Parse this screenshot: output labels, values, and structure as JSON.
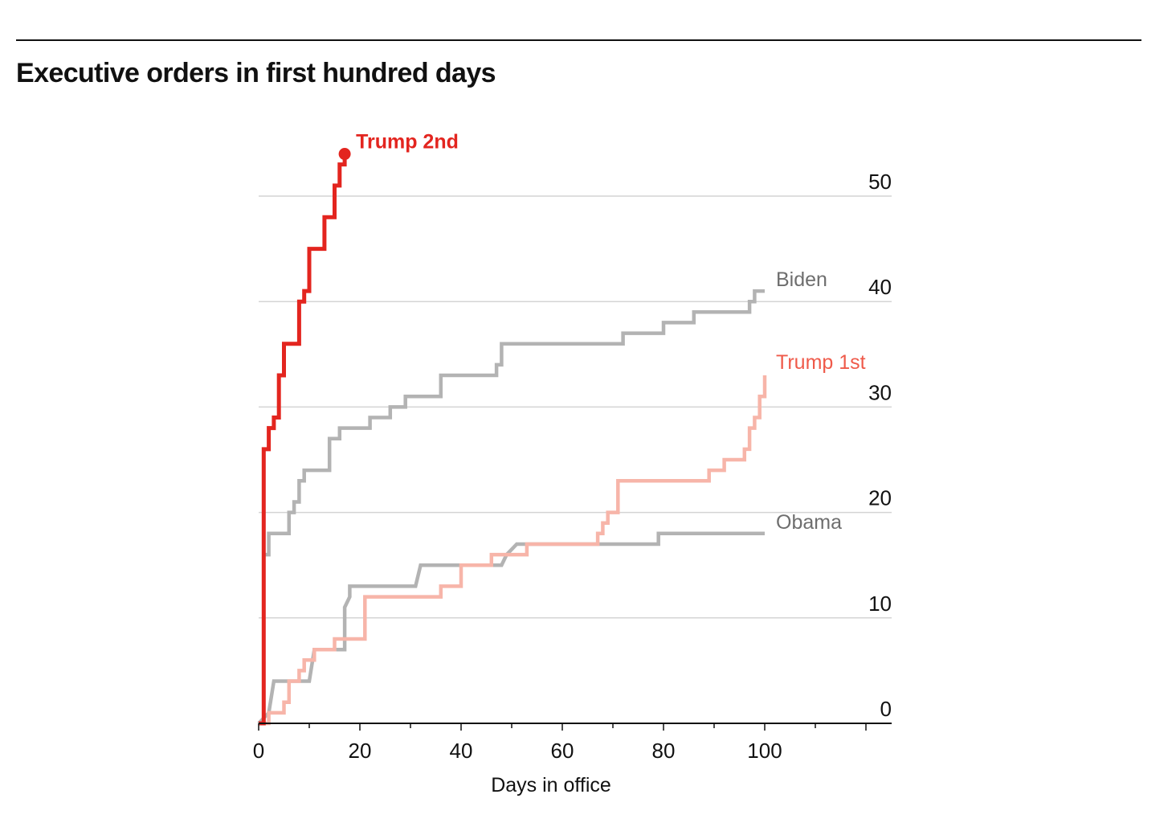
{
  "header": {
    "title": "Executive orders in first hundred days"
  },
  "chart_data": {
    "type": "line",
    "step": true,
    "title": "Executive orders in first hundred days",
    "xlabel": "Days in office",
    "ylabel": "",
    "xlim": [
      0,
      125
    ],
    "ylim": [
      0,
      55
    ],
    "x_ticks": [
      0,
      20,
      40,
      60,
      80,
      100
    ],
    "y_ticks": [
      0,
      10,
      20,
      30,
      40,
      50
    ],
    "grid": true,
    "legend": "direct labels at line ends",
    "series": [
      {
        "name": "Obama",
        "color": "#b3b3b3",
        "label_color": "#6e6e6e",
        "points": [
          [
            0,
            0
          ],
          [
            2,
            1
          ],
          [
            3,
            4
          ],
          [
            10,
            4
          ],
          [
            11,
            7
          ],
          [
            17,
            7
          ],
          [
            17,
            11
          ],
          [
            18,
            12
          ],
          [
            18,
            13
          ],
          [
            31,
            13
          ],
          [
            32,
            15
          ],
          [
            48,
            15
          ],
          [
            49,
            16
          ],
          [
            51,
            17
          ],
          [
            79,
            17
          ],
          [
            79,
            18
          ],
          [
            100,
            18
          ]
        ]
      },
      {
        "name": "Biden",
        "color": "#b3b3b3",
        "label_color": "#6e6e6e",
        "points": [
          [
            1,
            9
          ],
          [
            1,
            16
          ],
          [
            2,
            16
          ],
          [
            2,
            18
          ],
          [
            6,
            18
          ],
          [
            6,
            20
          ],
          [
            7,
            20
          ],
          [
            7,
            21
          ],
          [
            8,
            21
          ],
          [
            8,
            23
          ],
          [
            9,
            23
          ],
          [
            9,
            24
          ],
          [
            14,
            24
          ],
          [
            14,
            27
          ],
          [
            16,
            27
          ],
          [
            16,
            28
          ],
          [
            22,
            28
          ],
          [
            22,
            29
          ],
          [
            26,
            29
          ],
          [
            26,
            30
          ],
          [
            29,
            30
          ],
          [
            29,
            31
          ],
          [
            36,
            31
          ],
          [
            36,
            33
          ],
          [
            47,
            33
          ],
          [
            47,
            34
          ],
          [
            48,
            34
          ],
          [
            48,
            36
          ],
          [
            72,
            36
          ],
          [
            72,
            37
          ],
          [
            80,
            37
          ],
          [
            80,
            38
          ],
          [
            86,
            38
          ],
          [
            86,
            39
          ],
          [
            97,
            39
          ],
          [
            97,
            40
          ],
          [
            98,
            40
          ],
          [
            98,
            41
          ],
          [
            100,
            41
          ]
        ]
      },
      {
        "name": "Trump 1st",
        "color": "#f7b5a9",
        "label_color": "#ef5a4a",
        "points": [
          [
            0,
            0
          ],
          [
            2,
            0
          ],
          [
            2,
            1
          ],
          [
            5,
            1
          ],
          [
            5,
            2
          ],
          [
            6,
            2
          ],
          [
            6,
            4
          ],
          [
            8,
            4
          ],
          [
            8,
            5
          ],
          [
            9,
            5
          ],
          [
            9,
            6
          ],
          [
            11,
            6
          ],
          [
            11,
            7
          ],
          [
            15,
            7
          ],
          [
            15,
            8
          ],
          [
            21,
            8
          ],
          [
            21,
            12
          ],
          [
            36,
            12
          ],
          [
            36,
            13
          ],
          [
            40,
            13
          ],
          [
            40,
            15
          ],
          [
            46,
            15
          ],
          [
            46,
            16
          ],
          [
            53,
            16
          ],
          [
            53,
            17
          ],
          [
            67,
            17
          ],
          [
            67,
            18
          ],
          [
            68,
            18
          ],
          [
            68,
            19
          ],
          [
            69,
            19
          ],
          [
            69,
            20
          ],
          [
            71,
            20
          ],
          [
            71,
            23
          ],
          [
            89,
            23
          ],
          [
            89,
            24
          ],
          [
            92,
            24
          ],
          [
            92,
            25
          ],
          [
            96,
            25
          ],
          [
            96,
            26
          ],
          [
            97,
            26
          ],
          [
            97,
            28
          ],
          [
            98,
            28
          ],
          [
            98,
            29
          ],
          [
            99,
            29
          ],
          [
            99,
            31
          ],
          [
            100,
            31
          ],
          [
            100,
            33
          ]
        ]
      },
      {
        "name": "Trump 2nd",
        "color": "#e3251f",
        "label_color": "#e3251f",
        "points": [
          [
            0,
            0
          ],
          [
            1,
            0
          ],
          [
            1,
            26
          ],
          [
            2,
            26
          ],
          [
            2,
            28
          ],
          [
            3,
            28
          ],
          [
            3,
            29
          ],
          [
            4,
            29
          ],
          [
            4,
            33
          ],
          [
            5,
            33
          ],
          [
            5,
            36
          ],
          [
            8,
            36
          ],
          [
            8,
            40
          ],
          [
            9,
            40
          ],
          [
            9,
            41
          ],
          [
            10,
            41
          ],
          [
            10,
            45
          ],
          [
            13,
            45
          ],
          [
            13,
            48
          ],
          [
            15,
            48
          ],
          [
            15,
            51
          ],
          [
            16,
            51
          ],
          [
            16,
            53
          ],
          [
            17,
            53
          ],
          [
            17,
            54
          ]
        ]
      }
    ]
  }
}
